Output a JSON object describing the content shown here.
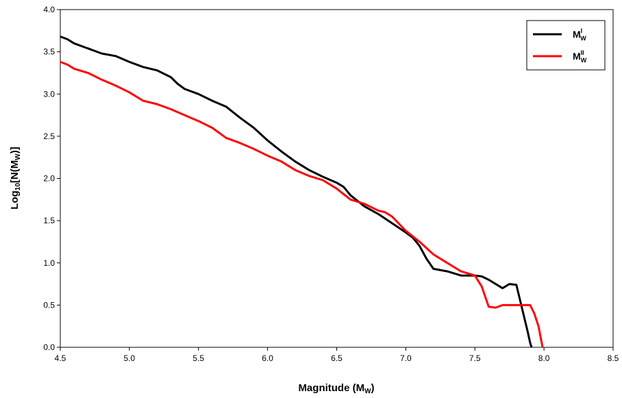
{
  "chart_data": {
    "type": "line",
    "xlabel": {
      "main": "Magnitude (M",
      "sub": "W",
      "end": ")"
    },
    "ylabel": {
      "pre": "Log",
      "sub": "10",
      "post": "[N(M",
      "sub2": "W",
      "end": ")]"
    },
    "xlim": [
      4.5,
      8.5
    ],
    "ylim": [
      0.0,
      4.0
    ],
    "xticks": [
      "4.5",
      "5.0",
      "5.5",
      "6.0",
      "6.5",
      "7.0",
      "7.5",
      "8.0",
      "8.5"
    ],
    "yticks": [
      "0.0",
      "0.5",
      "1.0",
      "1.5",
      "2.0",
      "2.5",
      "3.0",
      "3.5",
      "4.0"
    ],
    "grid": false,
    "legend_position": "top-right",
    "series": [
      {
        "name": "M_W^I",
        "legend": {
          "main": "M",
          "sup": "I",
          "sub": "W"
        },
        "color": "#000000",
        "x": [
          4.5,
          4.55,
          4.6,
          4.7,
          4.8,
          4.9,
          5.0,
          5.1,
          5.2,
          5.3,
          5.35,
          5.4,
          5.5,
          5.6,
          5.7,
          5.8,
          5.9,
          6.0,
          6.1,
          6.2,
          6.3,
          6.4,
          6.5,
          6.55,
          6.6,
          6.7,
          6.8,
          6.9,
          7.0,
          7.05,
          7.1,
          7.15,
          7.2,
          7.3,
          7.4,
          7.5,
          7.55,
          7.6,
          7.7,
          7.75,
          7.8,
          7.85,
          7.88,
          7.9,
          7.91
        ],
        "y": [
          3.68,
          3.65,
          3.6,
          3.54,
          3.48,
          3.45,
          3.38,
          3.32,
          3.28,
          3.2,
          3.12,
          3.06,
          3.0,
          2.92,
          2.85,
          2.72,
          2.6,
          2.45,
          2.32,
          2.2,
          2.1,
          2.02,
          1.95,
          1.9,
          1.8,
          1.67,
          1.58,
          1.47,
          1.36,
          1.3,
          1.2,
          1.05,
          0.93,
          0.9,
          0.85,
          0.85,
          0.84,
          0.8,
          0.7,
          0.75,
          0.74,
          0.4,
          0.2,
          0.05,
          0.0
        ]
      },
      {
        "name": "M_W^II",
        "legend": {
          "main": "M",
          "sup": "II",
          "sub": "W"
        },
        "color": "#ff0000",
        "x": [
          4.5,
          4.55,
          4.6,
          4.7,
          4.8,
          4.9,
          5.0,
          5.1,
          5.2,
          5.3,
          5.4,
          5.5,
          5.6,
          5.7,
          5.8,
          5.9,
          6.0,
          6.1,
          6.2,
          6.3,
          6.4,
          6.5,
          6.6,
          6.7,
          6.8,
          6.85,
          6.9,
          7.0,
          7.1,
          7.2,
          7.3,
          7.4,
          7.5,
          7.55,
          7.6,
          7.65,
          7.7,
          7.8,
          7.9,
          7.93,
          7.96,
          7.98,
          7.99
        ],
        "y": [
          3.38,
          3.35,
          3.3,
          3.25,
          3.17,
          3.1,
          3.02,
          2.92,
          2.88,
          2.82,
          2.75,
          2.68,
          2.6,
          2.48,
          2.42,
          2.35,
          2.27,
          2.2,
          2.1,
          2.03,
          1.98,
          1.88,
          1.75,
          1.7,
          1.62,
          1.6,
          1.55,
          1.38,
          1.25,
          1.1,
          1.0,
          0.9,
          0.85,
          0.72,
          0.48,
          0.47,
          0.5,
          0.5,
          0.5,
          0.4,
          0.25,
          0.08,
          0.0
        ]
      }
    ]
  }
}
